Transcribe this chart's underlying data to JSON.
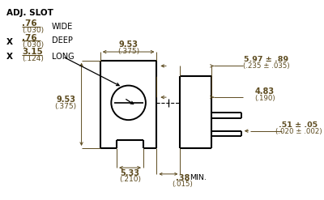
{
  "bg_color": "#ffffff",
  "line_color": "#000000",
  "dim_color": "#5c4a1e",
  "text_color": "#000000",
  "figsize": [
    4.0,
    2.47
  ],
  "dpi": 100,
  "ann": {
    "adj_slot": "ADJ. SLOT",
    "wide_num": ".76",
    "wide_mm": "(.030)",
    "wide_lbl": "WIDE",
    "x1": "X",
    "deep_num": ".76",
    "deep_mm": "(.030)",
    "deep_lbl": "DEEP",
    "x2": "X",
    "long_num": "3.15",
    "long_mm": "(.124)",
    "long_lbl": "LONG",
    "w953_num": "9.53",
    "w953_mm": "(.375)",
    "h953_num": "9.53",
    "h953_mm": "(.375)",
    "d533_num": "5.33",
    "d533_mm": "(.210)",
    "r597_num": "5.97 ± .89",
    "r597_mm": "(.235 ± .035)",
    "r483_num": "4.83",
    "r483_mm": "(.190)",
    "r051_num": ".51 ± .05",
    "r051_mm": "(.020 ± .002)",
    "r038_num": ".38",
    "r038_mm": "(.015)",
    "min_lbl": "MIN."
  }
}
